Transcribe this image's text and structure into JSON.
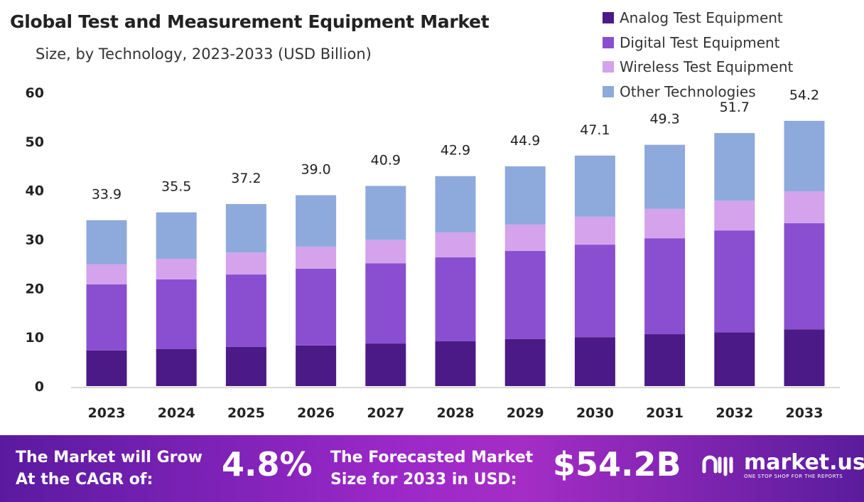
{
  "chart_data": {
    "type": "bar",
    "stacked": true,
    "title": "Global Test and Measurement Equipment Market",
    "subtitle": "Size, by Technology, 2023-2033 (USD Billion)",
    "categories": [
      "2023",
      "2024",
      "2025",
      "2026",
      "2027",
      "2028",
      "2029",
      "2030",
      "2031",
      "2032",
      "2033"
    ],
    "series": [
      {
        "name": "Analog Test Equipment",
        "color": "#4b1a86",
        "values": [
          7.3,
          7.6,
          8.0,
          8.3,
          8.7,
          9.2,
          9.6,
          10.0,
          10.6,
          11.0,
          11.6
        ]
      },
      {
        "name": "Digital Test Equipment",
        "color": "#8a4fd0",
        "values": [
          13.5,
          14.2,
          14.8,
          15.7,
          16.4,
          17.1,
          18.0,
          18.9,
          19.6,
          20.8,
          21.7
        ]
      },
      {
        "name": "Wireless Test Equipment",
        "color": "#d4a3ec",
        "values": [
          4.1,
          4.2,
          4.5,
          4.5,
          4.8,
          5.1,
          5.4,
          5.7,
          6.0,
          6.1,
          6.5
        ]
      },
      {
        "name": "Other Technologies",
        "color": "#8ea9dc",
        "values": [
          9.0,
          9.5,
          9.9,
          10.5,
          11.0,
          11.5,
          11.9,
          12.5,
          13.1,
          13.8,
          14.4
        ]
      }
    ],
    "totals": [
      "33.9",
      "35.5",
      "37.2",
      "39.0",
      "40.9",
      "42.9",
      "44.9",
      "47.1",
      "49.3",
      "51.7",
      "54.2"
    ],
    "yticks": [
      "0",
      "10",
      "20",
      "30",
      "40",
      "50",
      "60"
    ],
    "ylim": [
      0,
      60
    ],
    "grid": false,
    "legend": "top-right"
  },
  "footer": {
    "cagr_label_1": "The Market will Grow",
    "cagr_label_2": "At the CAGR of:",
    "cagr_value": "4.8%",
    "forecast_label_1": "The Forecasted Market",
    "forecast_label_2": "Size for 2033 in USD:",
    "forecast_value": "$54.2B",
    "brand": "market.us",
    "tagline": "ONE STOP SHOP FOR THE REPORTS"
  }
}
